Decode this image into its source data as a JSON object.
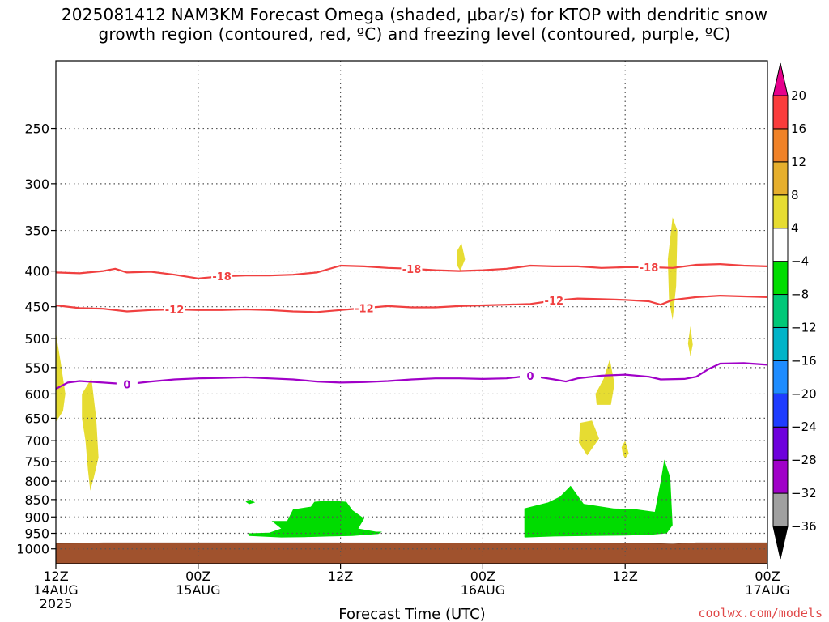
{
  "title": {
    "line1": "2025081412 NAM3KM Forecast Omega (shaded, μbar/s) for KTOP with dendritic snow",
    "line2": "growth region (contoured, red, ºC) and freezing level (contoured, purple, ºC)"
  },
  "credit": "coolwx.com/models",
  "chart_data": {
    "type": "time-height-cross-section",
    "xlabel": "Forecast Time (UTC)",
    "x_range_hours": [
      0,
      60
    ],
    "x_ticks": [
      {
        "hour": 0,
        "labels": [
          "12Z",
          "14AUG",
          "2025"
        ]
      },
      {
        "hour": 12,
        "labels": [
          "00Z",
          "15AUG"
        ]
      },
      {
        "hour": 24,
        "labels": [
          "12Z"
        ]
      },
      {
        "hour": 36,
        "labels": [
          "00Z",
          "16AUG"
        ]
      },
      {
        "hour": 48,
        "labels": [
          "12Z"
        ]
      },
      {
        "hour": 60,
        "labels": [
          "00Z",
          "17AUG"
        ]
      }
    ],
    "y_axis": "pressure (mb)",
    "y_ticks": [
      250,
      300,
      350,
      400,
      450,
      500,
      550,
      600,
      650,
      700,
      750,
      800,
      850,
      900,
      950,
      1000
    ],
    "colorbar": {
      "levels": [
        -36,
        -32,
        -28,
        -24,
        -20,
        -16,
        -12,
        -8,
        -4,
        4,
        8,
        12,
        16,
        20
      ],
      "colors": [
        "#000000",
        "#a0a0a0",
        "#a000c8",
        "#6e00dc",
        "#1e3cff",
        "#1e8cff",
        "#00b4c8",
        "#00c878",
        "#00dc00",
        "#ffffff",
        "#e6dc32",
        "#e6af2d",
        "#f08228",
        "#fa3c3c",
        "#e6008c"
      ]
    },
    "contours": [
      {
        "value": "-18",
        "color": "#f04040",
        "points": [
          [
            0,
            402
          ],
          [
            2,
            403
          ],
          [
            4,
            400
          ],
          [
            5,
            397
          ],
          [
            6,
            402
          ],
          [
            8,
            401
          ],
          [
            10,
            405
          ],
          [
            12,
            410
          ],
          [
            14,
            407
          ],
          [
            16,
            406
          ],
          [
            18,
            406
          ],
          [
            20,
            405
          ],
          [
            22,
            402
          ],
          [
            24,
            393
          ],
          [
            26,
            394
          ],
          [
            28,
            396
          ],
          [
            30,
            397
          ],
          [
            32,
            399
          ],
          [
            34,
            400
          ],
          [
            36,
            399
          ],
          [
            38,
            397
          ],
          [
            40,
            393
          ],
          [
            42,
            394
          ],
          [
            44,
            394
          ],
          [
            46,
            396
          ],
          [
            48,
            395
          ],
          [
            50,
            395
          ],
          [
            52,
            396
          ],
          [
            54,
            392
          ],
          [
            56,
            391
          ],
          [
            58,
            393
          ],
          [
            60,
            394
          ]
        ]
      },
      {
        "value": "-12",
        "color": "#f04040",
        "points": [
          [
            0,
            448
          ],
          [
            2,
            452
          ],
          [
            4,
            453
          ],
          [
            6,
            457
          ],
          [
            8,
            455
          ],
          [
            10,
            454
          ],
          [
            12,
            455
          ],
          [
            14,
            455
          ],
          [
            16,
            454
          ],
          [
            18,
            455
          ],
          [
            20,
            457
          ],
          [
            22,
            458
          ],
          [
            24,
            455
          ],
          [
            26,
            452
          ],
          [
            28,
            449
          ],
          [
            30,
            451
          ],
          [
            32,
            451
          ],
          [
            34,
            449
          ],
          [
            36,
            448
          ],
          [
            38,
            447
          ],
          [
            40,
            446
          ],
          [
            42,
            441
          ],
          [
            44,
            438
          ],
          [
            46,
            439
          ],
          [
            48,
            440
          ],
          [
            50,
            442
          ],
          [
            51,
            447
          ],
          [
            52,
            440
          ],
          [
            54,
            436
          ],
          [
            56,
            434
          ],
          [
            58,
            435
          ],
          [
            60,
            436
          ]
        ]
      },
      {
        "value": "0",
        "color": "#a000c8",
        "points": [
          [
            0,
            590
          ],
          [
            1,
            578
          ],
          [
            2,
            575
          ],
          [
            4,
            578
          ],
          [
            6,
            581
          ],
          [
            8,
            576
          ],
          [
            10,
            572
          ],
          [
            12,
            570
          ],
          [
            14,
            569
          ],
          [
            16,
            568
          ],
          [
            18,
            570
          ],
          [
            20,
            572
          ],
          [
            22,
            576
          ],
          [
            24,
            578
          ],
          [
            26,
            577
          ],
          [
            28,
            575
          ],
          [
            30,
            572
          ],
          [
            32,
            570
          ],
          [
            34,
            570
          ],
          [
            36,
            571
          ],
          [
            38,
            570
          ],
          [
            40,
            565
          ],
          [
            42,
            572
          ],
          [
            43,
            576
          ],
          [
            44,
            570
          ],
          [
            46,
            565
          ],
          [
            48,
            563
          ],
          [
            50,
            567
          ],
          [
            51,
            572
          ],
          [
            53,
            571
          ],
          [
            54,
            567
          ],
          [
            55,
            553
          ],
          [
            56,
            543
          ],
          [
            58,
            542
          ],
          [
            60,
            545
          ]
        ]
      }
    ],
    "omega_regions": [
      {
        "category": "4 to 8",
        "color": "#e6dc32",
        "polygon": [
          [
            0,
            490
          ],
          [
            0.4,
            540
          ],
          [
            0.8,
            600
          ],
          [
            0.6,
            635
          ],
          [
            0,
            658
          ]
        ]
      },
      {
        "category": "4 to 8",
        "color": "#e6dc32",
        "polygon": [
          [
            2.2,
            600
          ],
          [
            3.0,
            570
          ],
          [
            3.4,
            650
          ],
          [
            3.6,
            740
          ],
          [
            3.2,
            790
          ],
          [
            2.9,
            825
          ],
          [
            2.7,
            770
          ],
          [
            2.5,
            700
          ],
          [
            2.2,
            650
          ]
        ]
      },
      {
        "category": "4 to 8",
        "color": "#e6dc32",
        "polygon": [
          [
            33.8,
            375
          ],
          [
            34.2,
            365
          ],
          [
            34.5,
            385
          ],
          [
            34.1,
            400
          ],
          [
            33.8,
            392
          ]
        ]
      },
      {
        "category": "4 to 8",
        "color": "#e6dc32",
        "polygon": [
          [
            45.5,
            600
          ],
          [
            46.2,
            570
          ],
          [
            46.7,
            535
          ],
          [
            47.1,
            580
          ],
          [
            46.8,
            622
          ],
          [
            45.6,
            622
          ]
        ]
      },
      {
        "category": "4 to 8",
        "color": "#e6dc32",
        "polygon": [
          [
            44.2,
            660
          ],
          [
            45.2,
            655
          ],
          [
            45.8,
            695
          ],
          [
            44.8,
            735
          ],
          [
            44.1,
            705
          ]
        ]
      },
      {
        "category": "4 to 8",
        "color": "#e6dc32",
        "polygon": [
          [
            47.7,
            715
          ],
          [
            48.0,
            700
          ],
          [
            48.3,
            730
          ],
          [
            48.0,
            742
          ],
          [
            47.8,
            732
          ]
        ]
      },
      {
        "category": "4 to 8",
        "color": "#e6dc32",
        "polygon": [
          [
            51.6,
            385
          ],
          [
            52.0,
            335
          ],
          [
            52.4,
            350
          ],
          [
            52.3,
            420
          ],
          [
            52.0,
            470
          ],
          [
            51.7,
            440
          ]
        ]
      },
      {
        "category": "-8 to -4",
        "color": "#00dc00",
        "polygon": [
          [
            16.0,
            856
          ],
          [
            16.4,
            850
          ],
          [
            16.8,
            858
          ],
          [
            16.3,
            863
          ]
        ]
      },
      {
        "category": "-8 to -4",
        "color": "#00dc00",
        "polygon": [
          [
            16.2,
            950
          ],
          [
            18.0,
            948
          ],
          [
            19.0,
            935
          ],
          [
            18.2,
            912
          ],
          [
            19.5,
            912
          ],
          [
            20.0,
            878
          ],
          [
            21.5,
            870
          ],
          [
            21.8,
            856
          ],
          [
            23.0,
            853
          ],
          [
            24.5,
            856
          ],
          [
            25.0,
            880
          ],
          [
            26.0,
            905
          ],
          [
            25.5,
            935
          ],
          [
            27.0,
            945
          ],
          [
            27.5,
            945
          ],
          [
            27.2,
            952
          ],
          [
            25.0,
            958
          ],
          [
            23.0,
            960
          ],
          [
            21.0,
            962
          ],
          [
            19.0,
            963
          ],
          [
            16.3,
            958
          ]
        ]
      },
      {
        "category": "-8 to -4",
        "color": "#00dc00",
        "polygon": [
          [
            39.5,
            962
          ],
          [
            39.5,
            875
          ],
          [
            41.5,
            858
          ],
          [
            42.5,
            842
          ],
          [
            43.0,
            825
          ],
          [
            43.4,
            812
          ],
          [
            44.5,
            862
          ],
          [
            47.0,
            875
          ],
          [
            49.0,
            878
          ],
          [
            50.5,
            885
          ],
          [
            51.0,
            800
          ],
          [
            51.3,
            745
          ],
          [
            51.8,
            790
          ],
          [
            52.0,
            925
          ],
          [
            51.5,
            950
          ],
          [
            50.0,
            955
          ],
          [
            48.0,
            957
          ],
          [
            45.0,
            958
          ],
          [
            42.0,
            960
          ],
          [
            39.6,
            963
          ]
        ]
      },
      {
        "category": "4 to 8",
        "color": "#e6dc32",
        "polygon": [
          [
            53.3,
            508
          ],
          [
            53.5,
            480
          ],
          [
            53.7,
            510
          ],
          [
            53.5,
            530
          ]
        ]
      }
    ],
    "terrain_color": "#a0522d"
  }
}
